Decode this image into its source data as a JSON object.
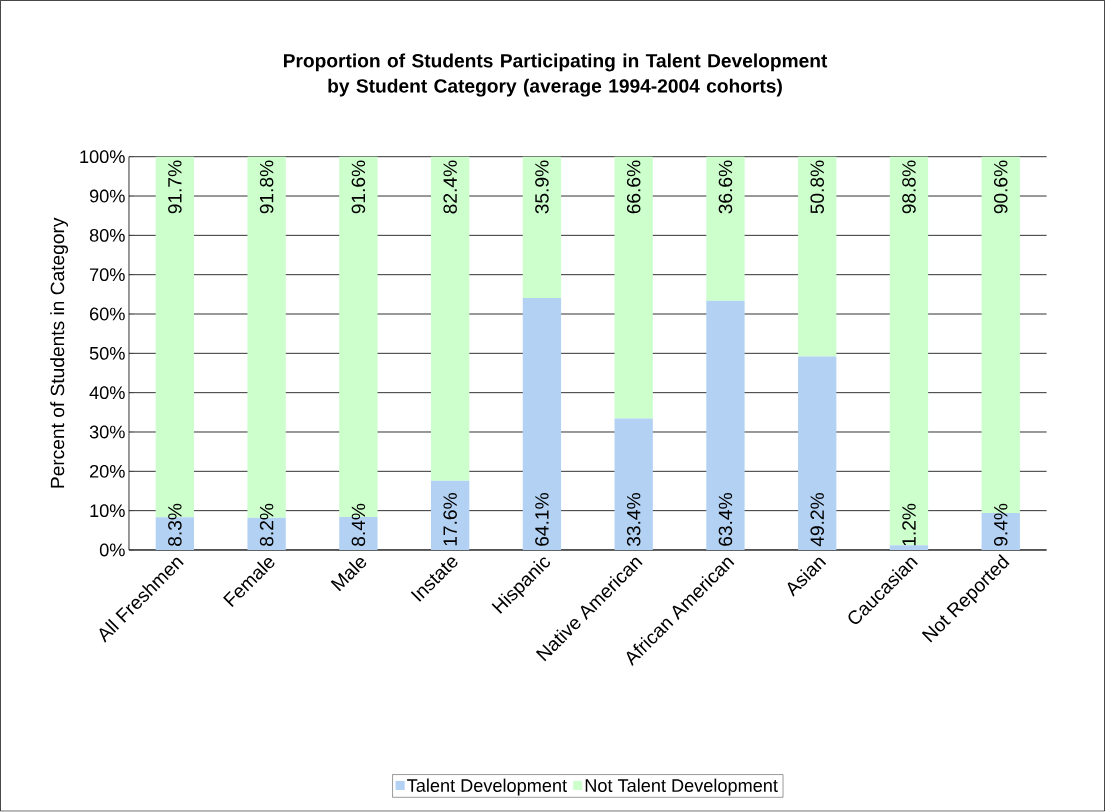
{
  "chart_data": {
    "type": "bar",
    "stacked": true,
    "title": "Proportion of Students Participating in Talent Development by Student Category (average 1994-2004 cohorts)",
    "ylabel": "Percent of Students in Category",
    "categories": [
      "All Freshmen",
      "Female",
      "Male",
      "Instate",
      "Hispanic",
      "Native American",
      "African American",
      "Asian",
      "Caucasian",
      "Not Reported"
    ],
    "series": [
      {
        "name": "Talent Development",
        "color": "#b3d1f2",
        "values": [
          8.3,
          8.2,
          8.4,
          17.6,
          64.1,
          33.4,
          63.4,
          49.2,
          1.2,
          9.4
        ],
        "value_labels": [
          "8.3%",
          "8.2%",
          "8.4%",
          "17.6%",
          "64.1%",
          "33.4%",
          "63.4%",
          "49.2%",
          "1.2%",
          "9.4%"
        ]
      },
      {
        "name": "Not Talent Development",
        "color": "#ccffcc",
        "values": [
          91.7,
          91.8,
          91.6,
          82.4,
          35.9,
          66.6,
          36.6,
          50.8,
          98.8,
          90.6
        ],
        "value_labels": [
          "91.7%",
          "91.8%",
          "91.6%",
          "82.4%",
          "35.9%",
          "66.6%",
          "36.6%",
          "50.8%",
          "98.8%",
          "90.6%"
        ]
      }
    ],
    "ylim": [
      0,
      100
    ],
    "yticks": [
      {
        "value": 0,
        "label": "0%"
      },
      {
        "value": 10,
        "label": "10%"
      },
      {
        "value": 20,
        "label": "20%"
      },
      {
        "value": 30,
        "label": "30%"
      },
      {
        "value": 40,
        "label": "40%"
      },
      {
        "value": 50,
        "label": "50%"
      },
      {
        "value": 60,
        "label": "60%"
      },
      {
        "value": 70,
        "label": "70%"
      },
      {
        "value": 80,
        "label": "80%"
      },
      {
        "value": 90,
        "label": "90%"
      },
      {
        "value": 100,
        "label": "100%"
      }
    ],
    "grid": "y",
    "legend": "bottom"
  }
}
